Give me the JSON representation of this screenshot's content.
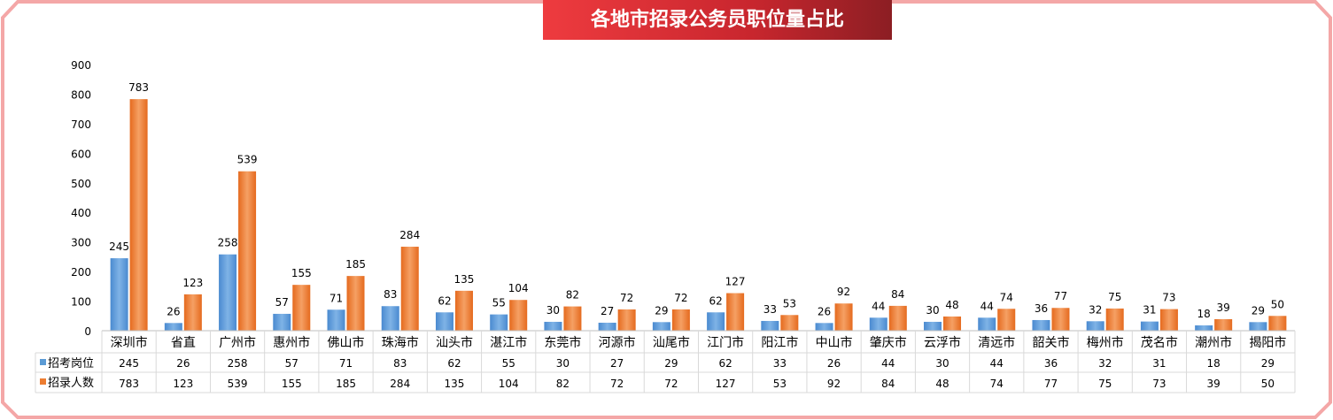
{
  "chart_data": {
    "type": "bar",
    "title": "各地市招录公务员职位量占比",
    "categories": [
      "深圳市",
      "省直",
      "广州市",
      "惠州市",
      "佛山市",
      "珠海市",
      "汕头市",
      "湛江市",
      "东莞市",
      "河源市",
      "汕尾市",
      "江门市",
      "阳江市",
      "中山市",
      "肇庆市",
      "云浮市",
      "清远市",
      "韶关市",
      "梅州市",
      "茂名市",
      "潮州市",
      "揭阳市"
    ],
    "series": [
      {
        "name": "招考岗位",
        "values": [
          245,
          26,
          258,
          57,
          71,
          83,
          62,
          55,
          30,
          27,
          29,
          62,
          33,
          26,
          44,
          30,
          44,
          36,
          32,
          31,
          18,
          29
        ],
        "color": "#5b9bd5"
      },
      {
        "name": "招录人数",
        "values": [
          783,
          123,
          539,
          155,
          185,
          284,
          135,
          104,
          82,
          72,
          72,
          127,
          53,
          92,
          84,
          48,
          74,
          77,
          75,
          73,
          39,
          50
        ],
        "color": "#ed7d31"
      }
    ],
    "yticks": [
      0,
      100,
      200,
      300,
      400,
      500,
      600,
      700,
      800,
      900
    ],
    "ylim": [
      0,
      900
    ],
    "grid": false,
    "data_table": true
  }
}
